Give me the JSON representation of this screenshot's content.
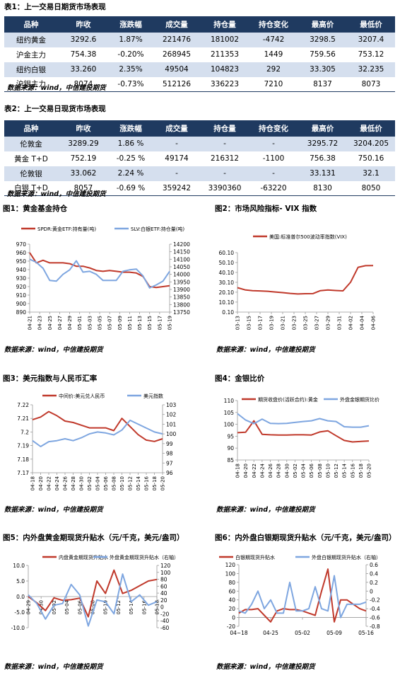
{
  "table1": {
    "caption": "表1：上一交易日期货市场表现",
    "headers": [
      "品种",
      "昨收",
      "涨跌幅",
      "成交量",
      "持仓量",
      "持仓变化",
      "最高价",
      "最低价"
    ],
    "rows": [
      [
        "纽约黄金",
        "3292.6",
        "1.87%",
        "221476",
        "181002",
        "-4742",
        "3298.5",
        "3207.4"
      ],
      [
        "沪金主力",
        "754.38",
        "-0.20%",
        "268945",
        "211353",
        "1449",
        "759.56",
        "753.12"
      ],
      [
        "纽约白银",
        "33.260",
        "2.35%",
        "49504",
        "104823",
        "292",
        "33.305",
        "32.235"
      ],
      [
        "沪银主力",
        "8074",
        "-0.73%",
        "512126",
        "336223",
        "7210",
        "8137",
        "8073"
      ]
    ],
    "source": "数据来源：wind，中信建投期货"
  },
  "table2": {
    "caption": "表2：上一交易日现货市场表现",
    "headers": [
      "品种",
      "昨收",
      "涨跌幅",
      "成交量",
      "持仓量",
      "持仓变化",
      "最高价",
      "最低价"
    ],
    "rows": [
      [
        "伦敦金",
        "3289.29",
        "1.86 %",
        "-",
        "-",
        "-",
        "3295.72",
        "3204.205"
      ],
      [
        "黄金 T+D",
        "752.19",
        "-0.25 %",
        "49174",
        "216312",
        "-1100",
        "756.38",
        "750.16"
      ],
      [
        "伦敦银",
        "33.062",
        "2.24 %",
        "-",
        "-",
        "-",
        "33.131",
        "32.1"
      ],
      [
        "白银 T+D",
        "8057",
        "-0.69 %",
        "359242",
        "3390360",
        "-63220",
        "8130",
        "8050"
      ]
    ],
    "source": "数据来源：wind，中信建投期货"
  },
  "fig_captions": {
    "f1": "图1：黄金基金持仓",
    "f2": "图2：市场风险指标- VIX 指数",
    "f3": "图3：美元指数与人民币汇率",
    "f4": "图4：金银比价",
    "f5": "图5：内外盘黄金期现货升贴水（元/千克，美元/盎司）",
    "f6": "图6：内外盘白银期现货升贴水（元/千克，美元/盎司）"
  },
  "source_text": "数据来源：wind，中信建投期货",
  "colors": {
    "red": "#c0392b",
    "blue": "#7ea6e0",
    "header": "#1f3a60",
    "alt_row": "#d5dfee"
  },
  "chart_data": [
    {
      "id": "f1",
      "type": "line",
      "x": [
        "04-21",
        "04-22",
        "04-23",
        "04-24",
        "04-25",
        "04-28",
        "04-29",
        "04-30",
        "05-01",
        "05-02",
        "05-05",
        "05-06",
        "05-07",
        "05-08",
        "05-09",
        "05-12",
        "05-13",
        "05-14",
        "05-15",
        "05-16",
        "05-19",
        "05-20"
      ],
      "xticks": [
        "04-21",
        "04-23",
        "04-25",
        "04-27",
        "04-29",
        "05-01",
        "05-03",
        "05-05",
        "05-07",
        "05-09",
        "05-11",
        "05-13",
        "05-15",
        "05-17",
        "05-19"
      ],
      "ylim": [
        890,
        970
      ],
      "yticks": [
        890,
        900,
        910,
        920,
        930,
        940,
        950,
        960,
        970
      ],
      "y2lim": [
        13750,
        14200
      ],
      "y2ticks": [
        13750,
        13800,
        13850,
        13900,
        13950,
        14000,
        14050,
        14100,
        14150,
        14200
      ],
      "series": [
        {
          "name": "SPDR:黄金ETF:持有量(吨)",
          "axis": "left",
          "values": [
            960,
            948,
            951,
            948,
            948,
            948,
            947,
            944,
            944,
            942,
            939,
            938,
            939,
            938,
            937,
            937,
            936,
            932,
            920,
            919,
            920,
            921
          ]
        },
        {
          "name": "SLV:白银ETF:持仓量(吨)",
          "axis": "right",
          "values": [
            14100,
            14080,
            14040,
            13960,
            13955,
            14000,
            14030,
            14090,
            14015,
            14020,
            14000,
            13960,
            13960,
            13960,
            14020,
            14030,
            14035,
            13990,
            13910,
            13930,
            13955,
            14020
          ]
        }
      ]
    },
    {
      "id": "f2",
      "type": "line",
      "x": [
        "03-13",
        "03-14",
        "03-17",
        "03-18",
        "03-19",
        "03-20",
        "03-21",
        "03-24",
        "03-25",
        "03-26",
        "03-27",
        "03-28",
        "03-31",
        "04-01",
        "04-02",
        "04-03",
        "04-04",
        "04-07",
        "04-08"
      ],
      "xticks": [
        "03-13",
        "03-15",
        "03-17",
        "03-19",
        "03-21",
        "03-23",
        "03-25",
        "03-27",
        "03-29",
        "03-31",
        "04-02",
        "04-04",
        "04-06"
      ],
      "ylim": [
        0,
        60.1
      ],
      "yticks": [
        0,
        10.1,
        20.1,
        30.1,
        40.1,
        50.1,
        60.1
      ],
      "yticklabels": [
        "0.10",
        "10.10",
        "20.10",
        "30.10",
        "40.10",
        "50.10",
        "60.10"
      ],
      "series": [
        {
          "name": "美国:标准普尔500波动率指数(VIX)",
          "axis": "left",
          "values": [
            24.7,
            22.5,
            21.7,
            21.4,
            21.0,
            20.3,
            19.7,
            18.9,
            18.3,
            18.6,
            18.7,
            21.7,
            22.3,
            21.8,
            21.5,
            30.1,
            45.3,
            46.9,
            47.0
          ]
        }
      ]
    },
    {
      "id": "f3",
      "type": "line",
      "x": [
        "04-18",
        "04-20",
        "04-22",
        "04-24",
        "04-26",
        "04-28",
        "04-30",
        "05-02",
        "05-04",
        "05-06",
        "05-08",
        "05-10",
        "05-12",
        "05-14",
        "05-16",
        "05-18",
        "05-20"
      ],
      "xticks": [
        "04-18",
        "04-20",
        "04-22",
        "04-24",
        "04-26",
        "04-28",
        "04-30",
        "05-02",
        "05-04",
        "05-06",
        "05-08",
        "05-10",
        "05-12",
        "05-14",
        "05-16",
        "05-18",
        "05-20"
      ],
      "ylim": [
        7.17,
        7.22
      ],
      "yticks": [
        7.17,
        7.18,
        7.19,
        7.2,
        7.21,
        7.22
      ],
      "y2lim": [
        96,
        103
      ],
      "y2ticks": [
        96,
        97,
        98,
        99,
        100,
        101,
        102,
        103
      ],
      "series": [
        {
          "name": "中间价:美元兑人民币",
          "axis": "left",
          "values": [
            7.209,
            7.211,
            7.215,
            7.212,
            7.208,
            7.207,
            7.205,
            7.203,
            7.203,
            7.203,
            7.201,
            7.21,
            7.204,
            7.198,
            7.194,
            7.193,
            7.195
          ]
        },
        {
          "name": "美元指数",
          "axis": "right",
          "values": [
            99.3,
            98.7,
            99.2,
            99.3,
            99.5,
            99.3,
            99.6,
            100.0,
            100.2,
            100.1,
            99.9,
            100.4,
            101.4,
            101.0,
            100.6,
            100.2,
            100.0
          ]
        }
      ]
    },
    {
      "id": "f4",
      "type": "line",
      "x": [
        "04-18",
        "04-20",
        "04-22",
        "04-24",
        "04-26",
        "04-28",
        "04-30",
        "05-02",
        "05-04",
        "05-06",
        "05-08",
        "05-10",
        "05-12",
        "05-14",
        "05-16",
        "05-18",
        "05-20"
      ],
      "xticks": [
        "04-18",
        "04-20",
        "04-22",
        "04-24",
        "04-26",
        "04-28",
        "04-30",
        "05-02",
        "05-04",
        "05-06",
        "05-08",
        "05-10",
        "05-12",
        "05-14",
        "05-16",
        "05-18",
        "05-20"
      ],
      "ylim": [
        85,
        110
      ],
      "yticks": [
        85,
        90,
        95,
        100,
        105,
        110
      ],
      "series": [
        {
          "name": "期货收盘价(活跃合约):黄金",
          "axis": "left",
          "values": [
            96.5,
            96.7,
            101.5,
            95.8,
            95.6,
            95.5,
            95.5,
            95.6,
            95.6,
            95.5,
            96.8,
            97.3,
            95.2,
            93.2,
            92.6,
            92.8,
            93.0
          ]
        },
        {
          "name": "外盘金银期货比价",
          "axis": "left",
          "values": [
            104.5,
            101.8,
            100.3,
            102.2,
            100.4,
            100.3,
            100.4,
            100.8,
            101.2,
            101.5,
            102.4,
            101.5,
            101.2,
            99.0,
            98.8,
            98.8,
            99.4
          ]
        }
      ]
    },
    {
      "id": "f5",
      "type": "line",
      "x": [
        "04-29",
        "04-30",
        "05-01",
        "05-02",
        "05-05",
        "05-06",
        "05-07",
        "05-08",
        "05-09",
        "05-12",
        "05-13",
        "05-14",
        "05-15",
        "05-16",
        "05-19",
        "05-20"
      ],
      "xticks": [
        "04-29",
        "04-30",
        "05-02",
        "05-04",
        "05-06",
        "05-08",
        "05-10",
        "05-12",
        "05-14",
        "05-16",
        "05-18"
      ],
      "ylim": [
        -10,
        10
      ],
      "yticks": [
        -10,
        -5,
        0,
        5,
        10
      ],
      "yticklabels": [
        "-10.0",
        "-5.0",
        "0.0",
        "5.0",
        "10.0"
      ],
      "y2lim": [
        -60,
        120
      ],
      "y2ticks": [
        -60,
        -40,
        -20,
        0,
        20,
        40,
        60,
        80,
        100,
        120
      ],
      "series": [
        {
          "name": "内盘黄金期现货升贴水",
          "axis": "left",
          "values": [
            0.0,
            -2.0,
            -4.5,
            -0.4,
            -1.2,
            -1.0,
            -0.5,
            -6.5,
            5.0,
            1.0,
            8.5,
            1.0,
            2.0,
            3.5,
            5.0,
            5.5
          ]
        },
        {
          "name": "外盘黄金期现货升贴水（右轴）",
          "axis": "right",
          "values": [
            35,
            10,
            -35,
            5,
            10,
            65,
            35,
            -55,
            20,
            15,
            -20,
            95,
            15,
            35,
            5,
            15
          ]
        }
      ]
    },
    {
      "id": "f6",
      "type": "line",
      "x": [
        "04-18",
        "04-21",
        "04-22",
        "04-23",
        "04-24",
        "04-25",
        "04-28",
        "04-29",
        "04-30",
        "05-02",
        "05-06",
        "05-07",
        "05-08",
        "05-09",
        "05-12",
        "05-13",
        "05-14",
        "05-15",
        "05-16",
        "05-19",
        "05-20"
      ],
      "xticks": [
        "04~18",
        "04-25",
        "05-02",
        "05-09",
        "05-16"
      ],
      "ylim": [
        -20,
        120
      ],
      "yticks": [
        -20,
        0,
        20,
        40,
        60,
        80,
        100,
        120
      ],
      "y2lim": [
        -0.8,
        0.6
      ],
      "y2ticks": [
        -0.8,
        -0.6,
        -0.4,
        -0.2,
        0,
        0.2,
        0.4,
        0.6
      ],
      "series": [
        {
          "name": "白银期现货升贴水",
          "axis": "left",
          "values": [
            10,
            18,
            18,
            20,
            5,
            -10,
            15,
            20,
            18,
            18,
            15,
            10,
            5,
            60,
            110,
            -10,
            40,
            40,
            30,
            20,
            15
          ]
        },
        {
          "name": "外盘白银期现货升贴水（右轴）",
          "axis": "right",
          "values": [
            -0.45,
            -0.5,
            -0.3,
            0.0,
            -0.4,
            -0.2,
            -0.5,
            -0.5,
            0.2,
            -0.45,
            -0.45,
            -0.4,
            0.1,
            -0.4,
            -0.45,
            0.35,
            -0.6,
            -0.3,
            -0.3,
            -0.3,
            -0.25
          ]
        }
      ]
    }
  ]
}
